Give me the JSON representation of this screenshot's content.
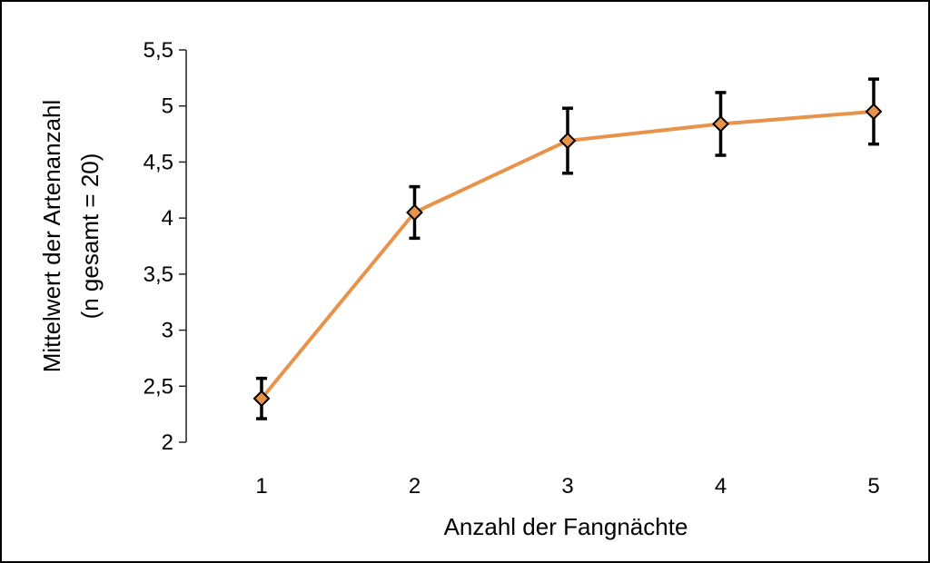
{
  "chart_data": {
    "type": "line",
    "title": "",
    "xlabel": "Anzahl der Fangnächte",
    "ylabel_lines": [
      "Mittelwert der Artenanzahl",
      "(n gesamt = 20)"
    ],
    "x": [
      1,
      2,
      3,
      4,
      5
    ],
    "x_tick_labels": [
      "1",
      "2",
      "3",
      "4",
      "5"
    ],
    "ylim": [
      2,
      5.5
    ],
    "y_ticks": [
      2,
      2.5,
      3,
      3.5,
      4,
      4.5,
      5,
      5.5
    ],
    "y_tick_labels": [
      "2",
      "2,5",
      "3",
      "3,5",
      "4",
      "4,5",
      "5",
      "5,5"
    ],
    "series": [
      {
        "values": [
          2.39,
          4.05,
          4.69,
          4.84,
          4.95
        ],
        "error": [
          0.18,
          0.23,
          0.29,
          0.28,
          0.29
        ],
        "color": "#e8924a",
        "marker": "diamond",
        "marker_edge_color": "#000000",
        "error_bar_color": "#000000"
      }
    ],
    "grid": false,
    "legend": "none"
  }
}
